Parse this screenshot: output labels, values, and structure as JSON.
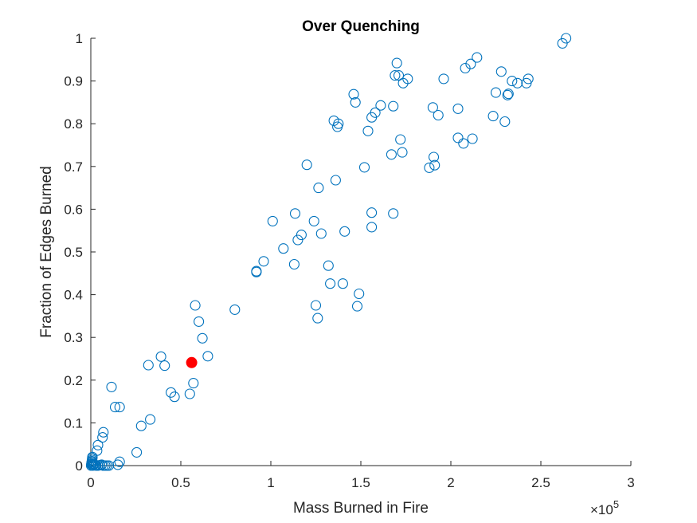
{
  "chart_data": {
    "type": "scatter",
    "title": "Over Quenching",
    "xlabel": "Mass Burned in Fire",
    "ylabel": "Fraction of Edges Burned",
    "x_multiplier": "×10",
    "x_multiplier_exponent": "5",
    "xlim": [
      0,
      300000
    ],
    "ylim": [
      0,
      1
    ],
    "xticks": [
      0,
      50000,
      100000,
      150000,
      200000,
      250000,
      300000
    ],
    "xtick_labels": [
      "0",
      "0.5",
      "1",
      "1.5",
      "2",
      "2.5",
      "3"
    ],
    "yticks": [
      0,
      0.1,
      0.2,
      0.3,
      0.4,
      0.5,
      0.6,
      0.7,
      0.8,
      0.9,
      1
    ],
    "ytick_labels": [
      "0",
      "0.1",
      "0.2",
      "0.3",
      "0.4",
      "0.5",
      "0.6",
      "0.7",
      "0.8",
      "0.9",
      "1"
    ],
    "grid": false,
    "series": [
      {
        "marker": "open-circle",
        "color": "#0072BD",
        "points": [
          [
            200,
            0.0
          ],
          [
            300,
            0.003
          ],
          [
            400,
            0.005
          ],
          [
            500,
            0.008
          ],
          [
            600,
            0.01
          ],
          [
            700,
            0.013
          ],
          [
            800,
            0.017
          ],
          [
            900,
            0.02
          ],
          [
            1000,
            0.0
          ],
          [
            1200,
            0.002
          ],
          [
            1500,
            0.004
          ],
          [
            2000,
            0.003
          ],
          [
            2500,
            0.001
          ],
          [
            3000,
            0.0
          ],
          [
            4000,
            0.0
          ],
          [
            5000,
            0.001
          ],
          [
            6000,
            0.002
          ],
          [
            7000,
            0.0
          ],
          [
            8000,
            0.0
          ],
          [
            9000,
            0.0
          ],
          [
            10000,
            0.0
          ],
          [
            15000,
            0.002
          ],
          [
            16000,
            0.009
          ],
          [
            3500,
            0.035
          ],
          [
            4000,
            0.048
          ],
          [
            6500,
            0.066
          ],
          [
            7000,
            0.078
          ],
          [
            11500,
            0.184
          ],
          [
            13500,
            0.137
          ],
          [
            16000,
            0.137
          ],
          [
            25500,
            0.031
          ],
          [
            28000,
            0.093
          ],
          [
            33000,
            0.108
          ],
          [
            32000,
            0.235
          ],
          [
            39000,
            0.255
          ],
          [
            41000,
            0.234
          ],
          [
            44500,
            0.171
          ],
          [
            46500,
            0.161
          ],
          [
            55000,
            0.168
          ],
          [
            57000,
            0.193
          ],
          [
            58000,
            0.375
          ],
          [
            60000,
            0.337
          ],
          [
            62000,
            0.298
          ],
          [
            65000,
            0.256
          ],
          [
            80000,
            0.365
          ],
          [
            92000,
            0.455
          ],
          [
            92000,
            0.453
          ],
          [
            96000,
            0.478
          ],
          [
            101000,
            0.572
          ],
          [
            107000,
            0.508
          ],
          [
            113000,
            0.471
          ],
          [
            113500,
            0.59
          ],
          [
            115000,
            0.528
          ],
          [
            117000,
            0.54
          ],
          [
            120000,
            0.704
          ],
          [
            124000,
            0.572
          ],
          [
            125000,
            0.375
          ],
          [
            126000,
            0.345
          ],
          [
            126500,
            0.65
          ],
          [
            128000,
            0.543
          ],
          [
            132000,
            0.468
          ],
          [
            133000,
            0.426
          ],
          [
            135000,
            0.807
          ],
          [
            136000,
            0.668
          ],
          [
            137000,
            0.793
          ],
          [
            137500,
            0.8
          ],
          [
            140000,
            0.426
          ],
          [
            141000,
            0.548
          ],
          [
            146000,
            0.869
          ],
          [
            147000,
            0.85
          ],
          [
            148000,
            0.373
          ],
          [
            149000,
            0.402
          ],
          [
            152000,
            0.698
          ],
          [
            154000,
            0.783
          ],
          [
            156000,
            0.592
          ],
          [
            156000,
            0.558
          ],
          [
            156000,
            0.815
          ],
          [
            158000,
            0.826
          ],
          [
            161000,
            0.843
          ],
          [
            167000,
            0.728
          ],
          [
            168000,
            0.59
          ],
          [
            168000,
            0.841
          ],
          [
            169000,
            0.913
          ],
          [
            170000,
            0.942
          ],
          [
            171000,
            0.913
          ],
          [
            172000,
            0.763
          ],
          [
            173000,
            0.733
          ],
          [
            173500,
            0.895
          ],
          [
            176000,
            0.905
          ],
          [
            188000,
            0.697
          ],
          [
            190000,
            0.838
          ],
          [
            190500,
            0.722
          ],
          [
            191000,
            0.703
          ],
          [
            193000,
            0.82
          ],
          [
            196000,
            0.905
          ],
          [
            204000,
            0.835
          ],
          [
            204000,
            0.767
          ],
          [
            207000,
            0.754
          ],
          [
            208000,
            0.93
          ],
          [
            211000,
            0.94
          ],
          [
            212000,
            0.765
          ],
          [
            214500,
            0.955
          ],
          [
            223500,
            0.818
          ],
          [
            225000,
            0.873
          ],
          [
            228000,
            0.922
          ],
          [
            230000,
            0.805
          ],
          [
            231500,
            0.867
          ],
          [
            232000,
            0.87
          ],
          [
            234000,
            0.9
          ],
          [
            237000,
            0.895
          ],
          [
            242000,
            0.895
          ],
          [
            243000,
            0.905
          ],
          [
            262000,
            0.988
          ],
          [
            264000,
            1.0
          ]
        ]
      },
      {
        "marker": "filled-circle",
        "color": "#FF0000",
        "points": [
          [
            56000,
            0.241
          ]
        ]
      }
    ]
  }
}
